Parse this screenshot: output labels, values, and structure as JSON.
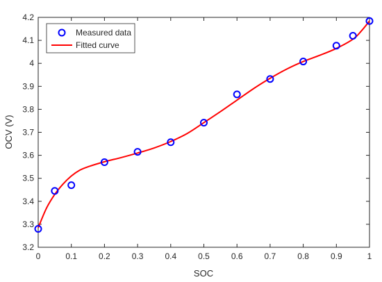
{
  "chart_data": {
    "type": "line",
    "xlabel": "SOC",
    "ylabel": "OCV (V)",
    "xlim": [
      0,
      1
    ],
    "ylim": [
      3.2,
      4.2
    ],
    "grid": false,
    "legend_position": "top-left",
    "x_ticks": [
      "0",
      "0.1",
      "0.2",
      "0.3",
      "0.4",
      "0.5",
      "0.6",
      "0.7",
      "0.8",
      "0.9",
      "1"
    ],
    "y_ticks": [
      "3.2",
      "3.3",
      "3.4",
      "3.5",
      "3.6",
      "3.7",
      "3.8",
      "3.9",
      "4",
      "4.1",
      "4.2"
    ],
    "series": [
      {
        "name": "Measured data",
        "kind": "markers",
        "color": "#0000ff",
        "x": [
          0,
          0.05,
          0.1,
          0.2,
          0.3,
          0.4,
          0.5,
          0.6,
          0.7,
          0.8,
          0.9,
          0.95,
          1.0
        ],
        "y": [
          3.28,
          3.445,
          3.47,
          3.57,
          3.615,
          3.657,
          3.742,
          3.865,
          3.932,
          4.008,
          4.077,
          4.12,
          4.184
        ]
      },
      {
        "name": "Fitted curve",
        "kind": "line",
        "color": "#ff0000",
        "x": [
          0,
          0.025,
          0.05,
          0.075,
          0.1,
          0.125,
          0.15,
          0.2,
          0.25,
          0.3,
          0.35,
          0.4,
          0.45,
          0.5,
          0.55,
          0.6,
          0.65,
          0.7,
          0.75,
          0.8,
          0.85,
          0.9,
          0.95,
          0.975,
          1.0
        ],
        "y": [
          3.285,
          3.37,
          3.43,
          3.475,
          3.51,
          3.535,
          3.55,
          3.572,
          3.59,
          3.61,
          3.632,
          3.66,
          3.695,
          3.742,
          3.79,
          3.84,
          3.89,
          3.935,
          3.975,
          4.008,
          4.035,
          4.065,
          4.105,
          4.14,
          4.184
        ]
      }
    ]
  }
}
